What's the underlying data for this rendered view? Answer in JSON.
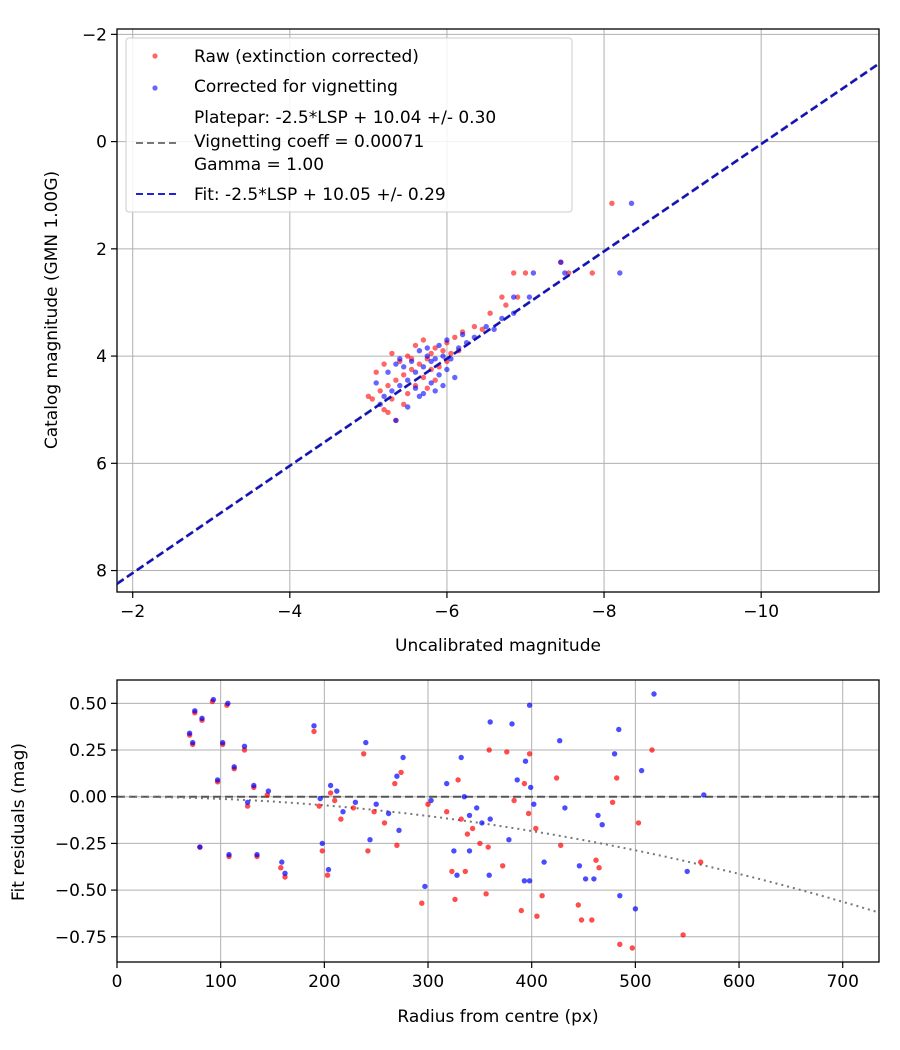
{
  "chart_data": [
    {
      "type": "scatter",
      "xlabel": "Uncalibrated magnitude",
      "ylabel": "Catalog magnitude (GMN 1.00G)",
      "xlim": [
        -1.8,
        -11.5
      ],
      "ylim": [
        8.4,
        -2.1
      ],
      "xticks": [
        -2,
        -4,
        -6,
        -8,
        -10
      ],
      "yticks": [
        -2,
        0,
        2,
        4,
        6,
        8
      ],
      "xtick_labels": [
        "−2",
        "−4",
        "−6",
        "−8",
        "−10"
      ],
      "ytick_labels": [
        "−2",
        "0",
        "2",
        "4",
        "6",
        "8"
      ],
      "grid": true,
      "legend_position": "top-left",
      "legend": [
        {
          "label": "Raw (extinction corrected)",
          "kind": "marker",
          "color": "#ff0000"
        },
        {
          "label": "Corrected for vignetting",
          "kind": "marker",
          "color": "#0000ff"
        },
        {
          "label_lines": [
            "Platepar: -2.5*LSP + 10.04 +/- 0.30",
            "Vignetting coeff = 0.00071",
            "Gamma = 1.00"
          ],
          "kind": "dashed",
          "color": "#555555"
        },
        {
          "label": "Fit: -2.5*LSP + 10.05 +/- 0.29",
          "kind": "dashed",
          "color": "#0000cc"
        }
      ],
      "lines": [
        {
          "name": "Platepar",
          "slope": 1,
          "intercept": 10.04,
          "color": "#555555",
          "style": "dashed"
        },
        {
          "name": "Fit",
          "slope": 1,
          "intercept": 10.05,
          "color": "#0000cc",
          "style": "dashed"
        }
      ],
      "series": [
        {
          "name": "Raw (extinction corrected)",
          "color": "#ff0000",
          "points": [
            [
              -8.1,
              1.15
            ],
            [
              -7.85,
              2.45
            ],
            [
              -7.55,
              2.45
            ],
            [
              -7.45,
              2.25
            ],
            [
              -7.0,
              2.45
            ],
            [
              -6.85,
              2.45
            ],
            [
              -6.9,
              2.9
            ],
            [
              -6.7,
              2.9
            ],
            [
              -6.75,
              3.05
            ],
            [
              -6.55,
              3.2
            ],
            [
              -6.45,
              3.5
            ],
            [
              -6.35,
              3.45
            ],
            [
              -6.2,
              3.55
            ],
            [
              -6.1,
              3.65
            ],
            [
              -6.0,
              3.75
            ],
            [
              -5.95,
              3.9
            ],
            [
              -5.85,
              3.85
            ],
            [
              -5.8,
              3.95
            ],
            [
              -5.75,
              4.05
            ],
            [
              -5.7,
              3.7
            ],
            [
              -5.65,
              4.15
            ],
            [
              -5.6,
              3.8
            ],
            [
              -5.55,
              4.25
            ],
            [
              -5.5,
              4.0
            ],
            [
              -5.45,
              4.35
            ],
            [
              -5.4,
              4.1
            ],
            [
              -5.35,
              4.45
            ],
            [
              -5.3,
              3.95
            ],
            [
              -5.25,
              4.55
            ],
            [
              -5.2,
              4.15
            ],
            [
              -5.15,
              4.65
            ],
            [
              -5.1,
              4.3
            ],
            [
              -5.05,
              4.8
            ],
            [
              -5.25,
              5.05
            ],
            [
              -5.35,
              5.2
            ],
            [
              -5.0,
              4.75
            ],
            [
              -5.5,
              4.7
            ],
            [
              -5.6,
              4.55
            ],
            [
              -5.7,
              4.4
            ],
            [
              -5.8,
              4.25
            ],
            [
              -5.9,
              4.2
            ],
            [
              -6.0,
              4.1
            ],
            [
              -6.05,
              3.95
            ],
            [
              -5.45,
              4.9
            ],
            [
              -5.3,
              4.8
            ],
            [
              -5.2,
              5.0
            ],
            [
              -6.15,
              3.9
            ],
            [
              -5.55,
              4.05
            ],
            [
              -5.75,
              4.6
            ],
            [
              -5.85,
              4.45
            ]
          ]
        },
        {
          "name": "Corrected for vignetting",
          "color": "#0000ff",
          "points": [
            [
              -8.35,
              1.15
            ],
            [
              -8.2,
              2.45
            ],
            [
              -7.5,
              2.45
            ],
            [
              -7.45,
              2.25
            ],
            [
              -7.1,
              2.45
            ],
            [
              -7.05,
              2.9
            ],
            [
              -6.85,
              2.9
            ],
            [
              -6.85,
              3.2
            ],
            [
              -6.7,
              3.3
            ],
            [
              -6.6,
              3.5
            ],
            [
              -6.5,
              3.45
            ],
            [
              -6.35,
              3.65
            ],
            [
              -6.25,
              3.75
            ],
            [
              -6.15,
              3.85
            ],
            [
              -6.0,
              3.7
            ],
            [
              -5.95,
              4.0
            ],
            [
              -5.9,
              3.8
            ],
            [
              -5.85,
              4.05
            ],
            [
              -5.8,
              4.1
            ],
            [
              -5.75,
              3.85
            ],
            [
              -5.7,
              4.2
            ],
            [
              -5.65,
              3.9
            ],
            [
              -5.6,
              4.3
            ],
            [
              -5.55,
              4.1
            ],
            [
              -5.5,
              4.45
            ],
            [
              -5.45,
              4.2
            ],
            [
              -5.4,
              4.55
            ],
            [
              -5.35,
              4.15
            ],
            [
              -5.3,
              4.65
            ],
            [
              -5.25,
              4.3
            ],
            [
              -5.2,
              4.75
            ],
            [
              -5.15,
              4.9
            ],
            [
              -5.35,
              5.2
            ],
            [
              -5.1,
              4.5
            ],
            [
              -5.6,
              4.6
            ],
            [
              -5.7,
              4.7
            ],
            [
              -5.8,
              4.5
            ],
            [
              -5.9,
              4.35
            ],
            [
              -6.0,
              4.25
            ],
            [
              -6.05,
              4.05
            ],
            [
              -6.1,
              4.4
            ],
            [
              -5.5,
              4.95
            ],
            [
              -5.75,
              4.0
            ],
            [
              -5.85,
              4.65
            ],
            [
              -5.95,
              4.55
            ],
            [
              -5.4,
              4.05
            ],
            [
              -5.65,
              4.75
            ],
            [
              -6.2,
              3.6
            ]
          ]
        }
      ]
    },
    {
      "type": "scatter",
      "xlabel": "Radius from centre (px)",
      "ylabel": "Fit residuals (mag)",
      "xlim": [
        0,
        735
      ],
      "ylim": [
        -0.885,
        0.625
      ],
      "xticks": [
        0,
        100,
        200,
        300,
        400,
        500,
        600,
        700
      ],
      "yticks": [
        0.5,
        0.25,
        0.0,
        -0.25,
        -0.5,
        -0.75
      ],
      "xtick_labels": [
        "0",
        "100",
        "200",
        "300",
        "400",
        "500",
        "600",
        "700"
      ],
      "ytick_labels": [
        "0.50",
        "0.25",
        "0.00",
        "−0.25",
        "−0.50",
        "−0.75"
      ],
      "grid": true,
      "lines": [
        {
          "name": "zero",
          "kind": "hline",
          "value": 0,
          "color": "#555555",
          "style": "dashed"
        },
        {
          "name": "vignetting",
          "kind": "quadratic",
          "coeff": -1.148e-06,
          "color": "#777777",
          "style": "dotted"
        }
      ],
      "series": [
        {
          "name": "Raw (extinction corrected)",
          "color": "#ff0000",
          "points": [
            [
              70,
              0.33
            ],
            [
              73,
              0.28
            ],
            [
              75,
              0.45
            ],
            [
              80,
              -0.27
            ],
            [
              82,
              0.41
            ],
            [
              92,
              0.51
            ],
            [
              97,
              0.08
            ],
            [
              102,
              0.28
            ],
            [
              106,
              0.49
            ],
            [
              108,
              -0.32
            ],
            [
              113,
              0.15
            ],
            [
              123,
              0.25
            ],
            [
              126,
              -0.05
            ],
            [
              132,
              0.05
            ],
            [
              135,
              -0.32
            ],
            [
              145,
              0.01
            ],
            [
              158,
              -0.38
            ],
            [
              162,
              -0.43
            ],
            [
              190,
              0.35
            ],
            [
              195,
              -0.05
            ],
            [
              198,
              -0.29
            ],
            [
              203,
              -0.42
            ],
            [
              206,
              0.02
            ],
            [
              210,
              -0.02
            ],
            [
              216,
              -0.12
            ],
            [
              228,
              -0.06
            ],
            [
              238,
              0.23
            ],
            [
              242,
              -0.29
            ],
            [
              248,
              -0.08
            ],
            [
              258,
              -0.14
            ],
            [
              268,
              0.07
            ],
            [
              270,
              -0.26
            ],
            [
              274,
              0.13
            ],
            [
              294,
              -0.57
            ],
            [
              300,
              -0.04
            ],
            [
              318,
              -0.08
            ],
            [
              323,
              -0.4
            ],
            [
              326,
              -0.55
            ],
            [
              329,
              0.09
            ],
            [
              336,
              -0.4
            ],
            [
              338,
              -0.2
            ],
            [
              343,
              -0.17
            ],
            [
              350,
              -0.25
            ],
            [
              356,
              -0.52
            ],
            [
              358,
              -0.27
            ],
            [
              359,
              0.25
            ],
            [
              372,
              -0.37
            ],
            [
              376,
              0.24
            ],
            [
              383,
              -0.02
            ],
            [
              393,
              0.07
            ],
            [
              397,
              -0.09
            ],
            [
              405,
              -0.64
            ],
            [
              404,
              -0.17
            ],
            [
              410,
              -0.53
            ],
            [
              424,
              0.1
            ],
            [
              428,
              -0.26
            ],
            [
              445,
              -0.58
            ],
            [
              448,
              -0.66
            ],
            [
              458,
              -0.66
            ],
            [
              462,
              -0.34
            ],
            [
              465,
              -0.38
            ],
            [
              478,
              -0.03
            ],
            [
              482,
              0.1
            ],
            [
              485,
              -0.79
            ],
            [
              497,
              -0.81
            ],
            [
              503,
              -0.14
            ],
            [
              516,
              0.25
            ],
            [
              546,
              -0.74
            ],
            [
              563,
              -0.35
            ],
            [
              398,
              0.23
            ],
            [
              390,
              -0.61
            ],
            [
              332,
              -0.12
            ]
          ]
        },
        {
          "name": "Corrected for vignetting",
          "color": "#0000ff",
          "points": [
            [
              70,
              0.34
            ],
            [
              73,
              0.29
            ],
            [
              75,
              0.46
            ],
            [
              80,
              -0.27
            ],
            [
              82,
              0.42
            ],
            [
              93,
              0.52
            ],
            [
              97,
              0.09
            ],
            [
              102,
              0.29
            ],
            [
              107,
              0.5
            ],
            [
              108,
              -0.31
            ],
            [
              113,
              0.16
            ],
            [
              123,
              0.27
            ],
            [
              126,
              -0.03
            ],
            [
              132,
              0.06
            ],
            [
              135,
              -0.31
            ],
            [
              146,
              0.03
            ],
            [
              159,
              -0.35
            ],
            [
              162,
              -0.41
            ],
            [
              190,
              0.38
            ],
            [
              196,
              -0.01
            ],
            [
              198,
              -0.25
            ],
            [
              204,
              -0.39
            ],
            [
              206,
              0.06
            ],
            [
              212,
              0.03
            ],
            [
              218,
              -0.08
            ],
            [
              230,
              -0.03
            ],
            [
              240,
              0.29
            ],
            [
              244,
              -0.23
            ],
            [
              250,
              -0.04
            ],
            [
              262,
              -0.09
            ],
            [
              270,
              0.11
            ],
            [
              272,
              -0.18
            ],
            [
              276,
              0.21
            ],
            [
              297,
              -0.48
            ],
            [
              303,
              -0.02
            ],
            [
              318,
              0.07
            ],
            [
              325,
              -0.29
            ],
            [
              328,
              -0.42
            ],
            [
              332,
              0.21
            ],
            [
              340,
              -0.29
            ],
            [
              340,
              -0.1
            ],
            [
              347,
              -0.06
            ],
            [
              352,
              -0.14
            ],
            [
              359,
              -0.42
            ],
            [
              360,
              -0.12
            ],
            [
              360,
              0.4
            ],
            [
              378,
              -0.23
            ],
            [
              381,
              0.39
            ],
            [
              386,
              0.09
            ],
            [
              394,
              0.19
            ],
            [
              399,
              0.05
            ],
            [
              398,
              -0.45
            ],
            [
              402,
              -0.04
            ],
            [
              412,
              -0.35
            ],
            [
              427,
              0.3
            ],
            [
              432,
              -0.06
            ],
            [
              446,
              -0.37
            ],
            [
              452,
              -0.44
            ],
            [
              460,
              -0.44
            ],
            [
              464,
              -0.1
            ],
            [
              468,
              -0.15
            ],
            [
              480,
              0.23
            ],
            [
              484,
              0.36
            ],
            [
              485,
              -0.53
            ],
            [
              500,
              -0.6
            ],
            [
              506,
              0.14
            ],
            [
              518,
              0.55
            ],
            [
              550,
              -0.4
            ],
            [
              566,
              0.01
            ],
            [
              398,
              0.49
            ],
            [
              393,
              -0.45
            ],
            [
              335,
              0.0
            ]
          ]
        }
      ]
    }
  ]
}
